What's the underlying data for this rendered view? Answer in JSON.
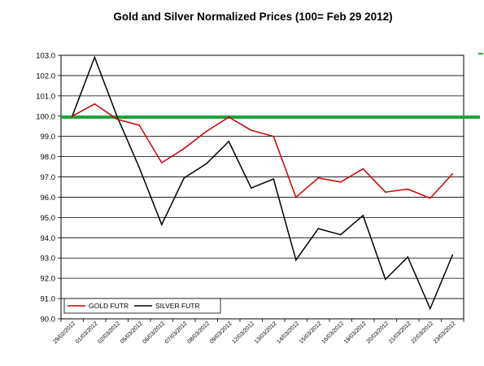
{
  "chart_data": {
    "type": "line",
    "title": "Gold and Silver Normalized Prices  (100= Feb 29 2012)",
    "xlabel": "",
    "ylabel": "",
    "ylim": [
      90.0,
      103.0
    ],
    "yticks": [
      "103.0",
      "102.0",
      "101.0",
      "100.0",
      "99.0",
      "98.0",
      "97.0",
      "96.0",
      "95.0",
      "94.0",
      "93.0",
      "92.0",
      "91.0",
      "90.0"
    ],
    "categories": [
      "29/02/2012",
      "01/03/2012",
      "02/03/2012",
      "05/03/2012",
      "06/03/2012",
      "07/03/2012",
      "08/03/2012",
      "09/03/2012",
      "12/03/2012",
      "13/03/2012",
      "14/03/2012",
      "15/03/2012",
      "16/03/2012",
      "19/03/2012",
      "20/03/2012",
      "21/03/2012",
      "22/03/2012",
      "23/03/2012"
    ],
    "grid": true,
    "legend_position": "bottom-left",
    "series": [
      {
        "name": "GOLD  FUTR",
        "color": "#cc0000",
        "values": [
          100.0,
          100.6,
          99.85,
          99.55,
          97.7,
          98.4,
          99.25,
          99.95,
          99.3,
          99.0,
          96.0,
          96.95,
          96.75,
          97.4,
          96.25,
          96.4,
          95.95,
          97.15
        ]
      },
      {
        "name": "SILVER  FUTR",
        "color": "#000000",
        "values": [
          100.0,
          102.9,
          100.0,
          97.45,
          94.65,
          96.95,
          97.65,
          98.75,
          96.45,
          96.9,
          92.9,
          94.45,
          94.15,
          95.1,
          91.95,
          93.05,
          90.5,
          93.15
        ]
      }
    ],
    "reference_line": {
      "value": 99.95,
      "color": "#22a33a"
    }
  }
}
